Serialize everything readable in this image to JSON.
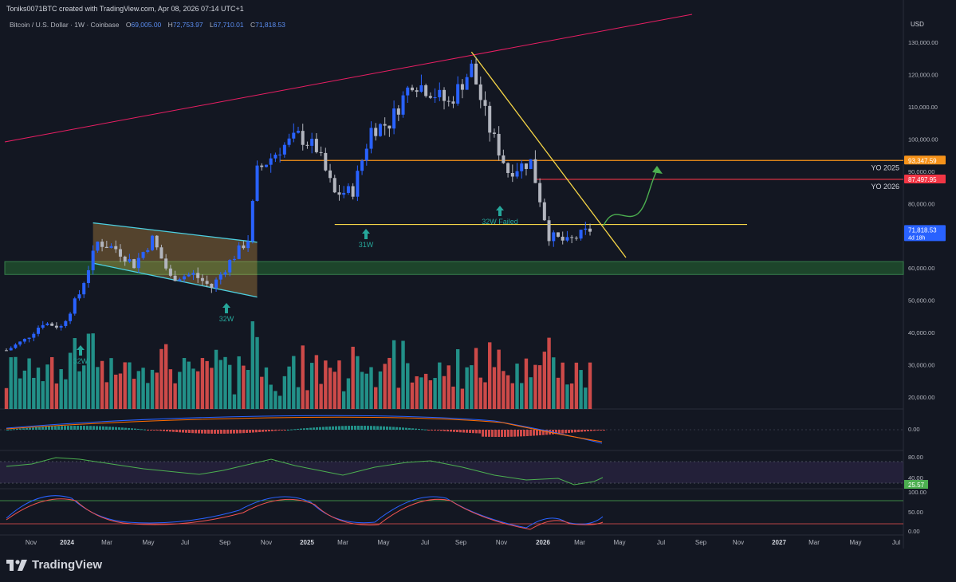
{
  "header": {
    "author_line": "Toniks0071BTC created with TradingView.com, Apr 08, 2026 07:14 UTC+1",
    "symbol": "Bitcoin / U.S. Dollar · 1W · Coinbase",
    "o_label": "O",
    "o_value": "69,005.00",
    "h_label": "H",
    "h_value": "72,753.97",
    "l_label": "L",
    "l_value": "67,710.01",
    "c_label": "C",
    "c_value": "71,818.53"
  },
  "price_axis": {
    "currency": "USD",
    "ticks": [
      "130,000.00",
      "120,000.00",
      "110,000.00",
      "100,000.00",
      "90,000.00",
      "80,000.00",
      "60,000.00",
      "50,000.00",
      "40,000.00",
      "30,000.00",
      "20,000.00"
    ],
    "tick_values": [
      130000,
      120000,
      110000,
      100000,
      90000,
      80000,
      60000,
      50000,
      40000,
      30000,
      20000
    ],
    "badges": [
      {
        "text": "93,347.59",
        "color": "#f7931a",
        "value": 93347.59
      },
      {
        "text": "87,497.95",
        "color": "#f23645",
        "value": 87497.95
      },
      {
        "text": "71,818.53",
        "sub": "4d 18h",
        "color": "#2962ff",
        "value": 71818.53
      }
    ],
    "macd_tick": "0.00",
    "rsi_ticks": [
      "80.00",
      "40.00"
    ],
    "rsi_badge": "25.57",
    "stoch_ticks": [
      "100.00",
      "50.00",
      "0.00"
    ]
  },
  "time_axis": {
    "labels": [
      "Nov",
      "2024",
      "Mar",
      "May",
      "Jul",
      "Sep",
      "Nov",
      "2025",
      "Mar",
      "May",
      "Jul",
      "Sep",
      "Nov",
      "2026",
      "Mar",
      "May",
      "Jul",
      "Sep",
      "Nov",
      "2027",
      "Mar",
      "May",
      "Jul"
    ],
    "bold": [
      "2024",
      "2025",
      "2026",
      "2027"
    ]
  },
  "annotations": {
    "yo_2025": "YO 2025",
    "yo_2026": "YO 2026",
    "arrow_32w_a": "32W",
    "arrow_32w_b": "32W",
    "arrow_31w": "31W",
    "arrow_failed": "32W Failed"
  },
  "brand": "TradingView",
  "colors": {
    "background": "#131722",
    "up": "#2962ff",
    "down": "#b2b5be",
    "vol_up": "#26a69a",
    "vol_down": "#ef5350",
    "trendline_red": "#e91e63",
    "trendline_yellow": "#f5d547",
    "yo2025_line": "#f7931a",
    "yo2026_line": "#f23645",
    "support_zone": "#1b5e20",
    "channel": "#4dd0e1",
    "arrow_green": "#4caf50",
    "projection": "#4caf50"
  },
  "chart_data": {
    "type": "candlestick",
    "title": "Bitcoin / U.S. Dollar · 1W · Coinbase",
    "ylim": [
      18000,
      136000
    ],
    "y_scale": "linear",
    "x_range": [
      "2023-10-23",
      "2027-07-31"
    ],
    "series_close": [
      [
        "2023-10-23",
        34500
      ],
      [
        "2023-11-20",
        37700
      ],
      [
        "2023-12-18",
        43000
      ],
      [
        "2024-01-15",
        41800
      ],
      [
        "2024-02-12",
        52000
      ],
      [
        "2024-03-11",
        68000
      ],
      [
        "2024-04-08",
        66000
      ],
      [
        "2024-05-06",
        61000
      ],
      [
        "2024-06-03",
        69000
      ],
      [
        "2024-07-01",
        57000
      ],
      [
        "2024-08-05",
        58000
      ],
      [
        "2024-09-02",
        54000
      ],
      [
        "2024-09-30",
        62000
      ],
      [
        "2024-10-28",
        69000
      ],
      [
        "2024-11-11",
        90000
      ],
      [
        "2024-12-16",
        97000
      ],
      [
        "2025-01-13",
        101000
      ],
      [
        "2025-02-10",
        97000
      ],
      [
        "2025-03-10",
        83000
      ],
      [
        "2025-04-07",
        84000
      ],
      [
        "2025-05-05",
        103000
      ],
      [
        "2025-06-02",
        105000
      ],
      [
        "2025-07-07",
        118000
      ],
      [
        "2025-08-04",
        115000
      ],
      [
        "2025-09-01",
        111000
      ],
      [
        "2025-10-06",
        122000
      ],
      [
        "2025-11-03",
        103000
      ],
      [
        "2025-12-01",
        90000
      ],
      [
        "2026-01-05",
        93000
      ],
      [
        "2026-02-02",
        70000
      ],
      [
        "2026-03-02",
        68000
      ],
      [
        "2026-04-06",
        71818.53
      ]
    ],
    "levels": [
      {
        "name": "YO 2025",
        "value": 93347.59
      },
      {
        "name": "YO 2026",
        "value": 87497.95
      },
      {
        "value": 73500
      }
    ],
    "support_zone": [
      58000,
      62000
    ],
    "rsi_value": 25.57
  }
}
